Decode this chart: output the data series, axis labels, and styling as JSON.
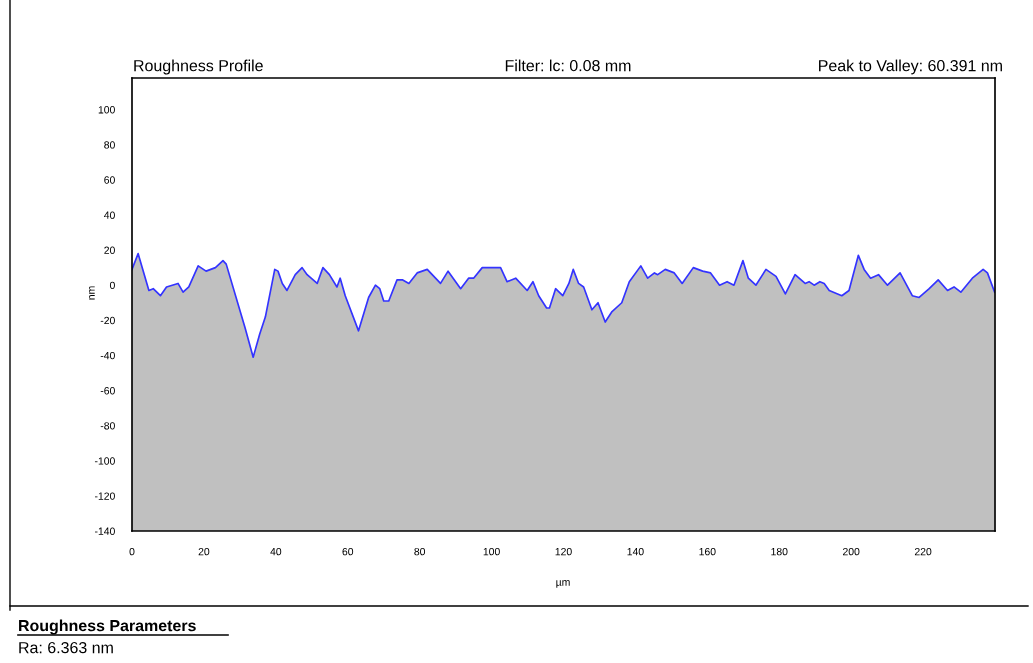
{
  "chart_data": {
    "type": "area",
    "title": "Roughness Profile",
    "subtitle": "Filter: lc: 0.08 mm",
    "xlabel": "µm",
    "ylabel": "nm",
    "annotations": [
      "Peak to Valley: 60.391 nm",
      "Roughness Parameters",
      "Ra: 6.363 nm"
    ],
    "series": [
      {
        "color": "#3333ff",
        "x": [
          0,
          1.7,
          4.7,
          5.9,
          7.9,
          9.6,
          12.8,
          14.2,
          15.8,
          18.4,
          20.6,
          23.2,
          25.3,
          26.2,
          31.4,
          33.7,
          35.5,
          37.1,
          39.7,
          40.6,
          41.8,
          43.1,
          45.4,
          47.3,
          48.7,
          51.5,
          53.1,
          54.9,
          57.0,
          57.9,
          59.3,
          63.0,
          65.8,
          67.7,
          68.9,
          70.0,
          71.4,
          73.7,
          75.3,
          77.0,
          79.3,
          82.1,
          85.8,
          87.9,
          91.4,
          93.6,
          95.0,
          97.4,
          102.5,
          104.3,
          106.7,
          109.9,
          111.5,
          113.1,
          115.3,
          116.1,
          117.8,
          119.8,
          121.5,
          122.7,
          124.2,
          125.6,
          127.9,
          129.6,
          131.6,
          133.5,
          136.2,
          138.3,
          141.5,
          143.4,
          145.3,
          146.2,
          148.3,
          150.8,
          153.0,
          156.1,
          158.7,
          160.9,
          163.4,
          165.5,
          167.4,
          169.9,
          171.4,
          173.5,
          176.3,
          179.1,
          181.7,
          184.4,
          187.2,
          188.3,
          189.7,
          191.3,
          192.5,
          193.9,
          197.4,
          199.4,
          202.0,
          203.6,
          205.4,
          207.6,
          210.1,
          213.6,
          217.0,
          218.9,
          221.7,
          224.2,
          226.8,
          228.6,
          230.5,
          233.7,
          236.7,
          237.9,
          239.9
        ],
        "values": [
          9,
          18,
          -3,
          -2,
          -6,
          -1,
          1,
          -4,
          -1,
          11,
          8,
          10,
          14,
          12,
          -24,
          -41,
          -28,
          -18,
          9,
          8,
          1,
          -3,
          6,
          10,
          6,
          1,
          10,
          6,
          -1,
          4,
          -6,
          -26,
          -7,
          0,
          -2,
          -9,
          -9,
          3,
          3,
          1,
          7,
          9,
          1,
          8,
          -2,
          4,
          4,
          10,
          10,
          2,
          4,
          -3,
          2,
          -6,
          -13,
          -13,
          -2,
          -6,
          1,
          9,
          1,
          -1,
          -14,
          -10,
          -21,
          -15,
          -10,
          2,
          11,
          4,
          7,
          6,
          9,
          7,
          1,
          10,
          8,
          7,
          0,
          2,
          0,
          14,
          4,
          0,
          9,
          5,
          -5,
          6,
          1,
          2,
          0,
          2,
          1,
          -3,
          -6,
          -3,
          17,
          9,
          4,
          6,
          0,
          7,
          -6,
          -7,
          -2,
          3,
          -3,
          -1,
          -4,
          4,
          9,
          7,
          -4
        ]
      }
    ],
    "xlim": [
      0,
      240
    ],
    "ylim": [
      -140,
      118
    ],
    "xticks": [
      0,
      20,
      40,
      60,
      80,
      100,
      120,
      140,
      160,
      180,
      200,
      220
    ],
    "yticks": [
      -140,
      -120,
      -100,
      -80,
      -60,
      -40,
      -20,
      0,
      20,
      40,
      60,
      80,
      100
    ],
    "grid": false,
    "legend": false
  }
}
